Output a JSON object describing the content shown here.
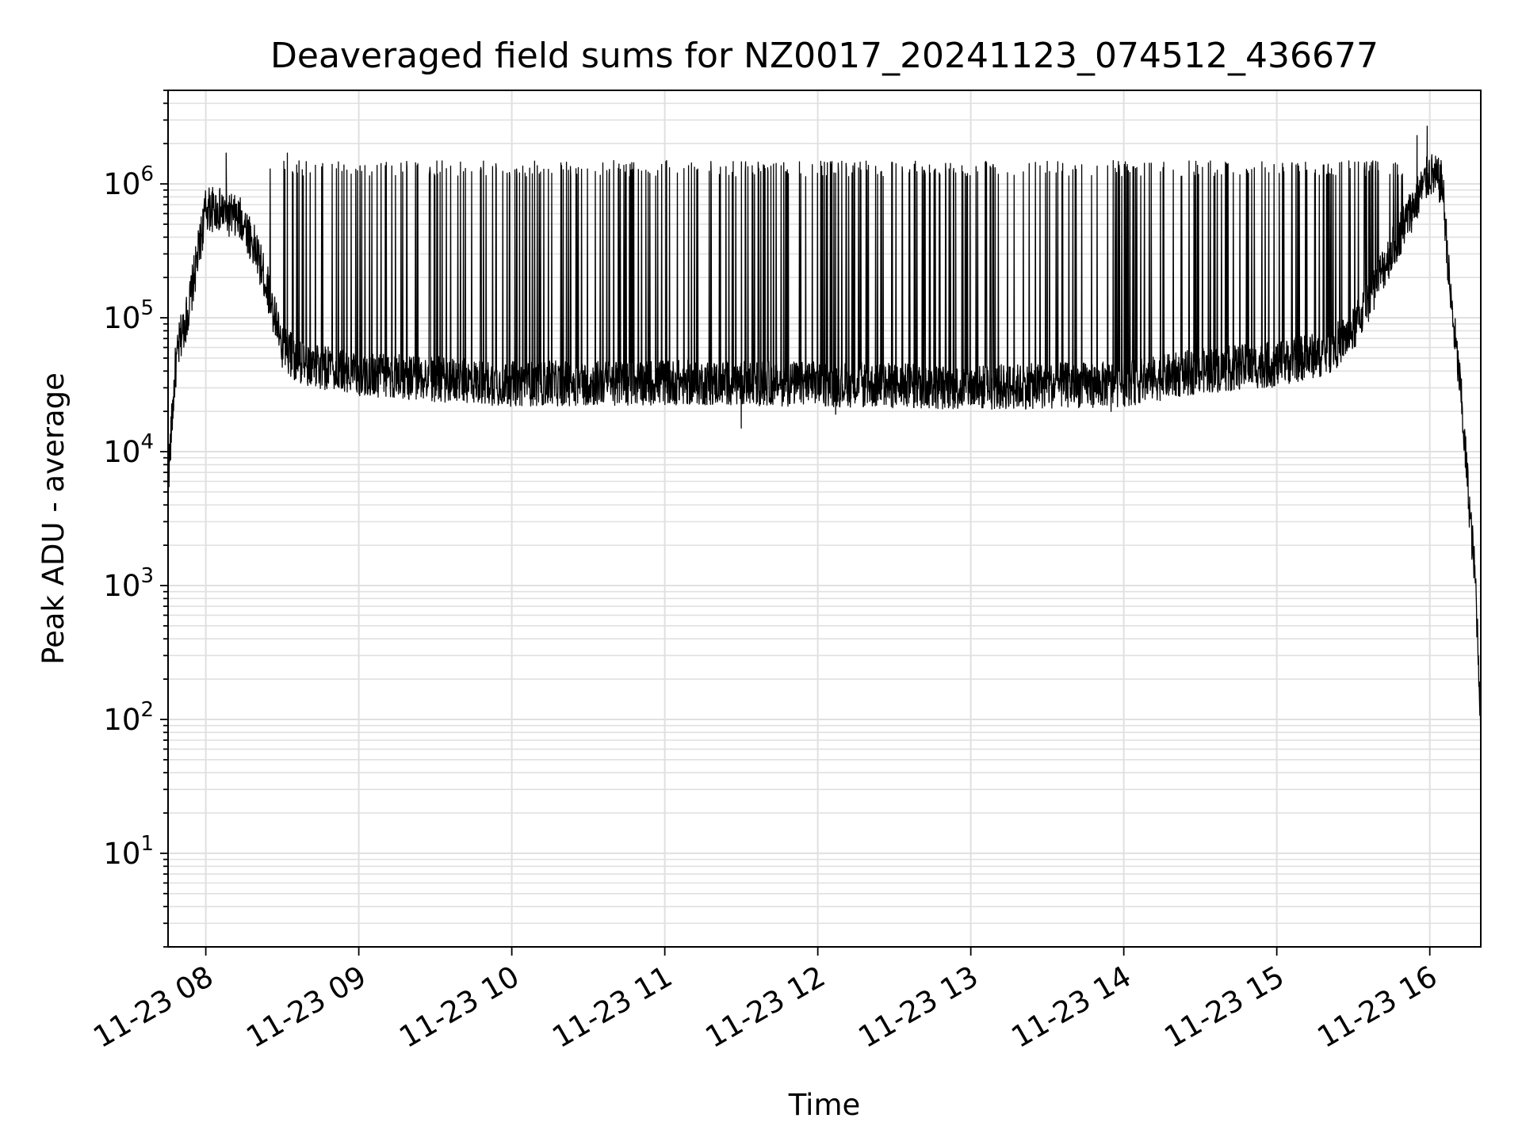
{
  "chart_data": {
    "type": "line",
    "title": "Deaveraged field sums for NZ0017_20241123_074512_436677",
    "xlabel": "Time",
    "ylabel": "Peak ADU - average",
    "y_scale": "log",
    "ylim": [
      2,
      5000000
    ],
    "xlim": [
      "2024-11-23T07:45:12",
      "2024-11-23T16:20:00"
    ],
    "grid": true,
    "line_color": "#000000",
    "grid_color": "#e0e0e0",
    "x_ticks": [
      {
        "value": "2024-11-23T08:00:00",
        "label": "11-23 08"
      },
      {
        "value": "2024-11-23T09:00:00",
        "label": "11-23 09"
      },
      {
        "value": "2024-11-23T10:00:00",
        "label": "11-23 10"
      },
      {
        "value": "2024-11-23T11:00:00",
        "label": "11-23 11"
      },
      {
        "value": "2024-11-23T12:00:00",
        "label": "11-23 12"
      },
      {
        "value": "2024-11-23T13:00:00",
        "label": "11-23 13"
      },
      {
        "value": "2024-11-23T14:00:00",
        "label": "11-23 14"
      },
      {
        "value": "2024-11-23T15:00:00",
        "label": "11-23 15"
      },
      {
        "value": "2024-11-23T16:00:00",
        "label": "11-23 16"
      }
    ],
    "y_ticks": [
      {
        "value": 10,
        "base": "10",
        "exp": "1"
      },
      {
        "value": 100,
        "base": "10",
        "exp": "2"
      },
      {
        "value": 1000,
        "base": "10",
        "exp": "3"
      },
      {
        "value": 10000,
        "base": "10",
        "exp": "4"
      },
      {
        "value": 100000,
        "base": "10",
        "exp": "5"
      },
      {
        "value": 1000000,
        "base": "10",
        "exp": "6"
      }
    ],
    "series": [
      {
        "baseline": {
          "x": [
            "2024-11-23T07:45:12",
            "2024-11-23T07:48:00",
            "2024-11-23T07:50:00",
            "2024-11-23T07:53:00",
            "2024-11-23T07:57:00",
            "2024-11-23T08:00:00",
            "2024-11-23T08:05:00",
            "2024-11-23T08:15:00",
            "2024-11-23T08:20:00",
            "2024-11-23T08:25:00",
            "2024-11-23T08:30:00",
            "2024-11-23T08:35:00",
            "2024-11-23T08:40:00",
            "2024-11-23T09:00:00",
            "2024-11-23T10:00:00",
            "2024-11-23T11:00:00",
            "2024-11-23T12:00:00",
            "2024-11-23T13:00:00",
            "2024-11-23T14:00:00",
            "2024-11-23T14:30:00",
            "2024-11-23T15:00:00",
            "2024-11-23T15:20:00",
            "2024-11-23T15:30:00",
            "2024-11-23T15:40:00",
            "2024-11-23T15:50:00",
            "2024-11-23T16:00:00",
            "2024-11-23T16:05:00",
            "2024-11-23T16:08:00",
            "2024-11-23T16:12:00",
            "2024-11-23T16:16:00",
            "2024-11-23T16:18:00",
            "2024-11-23T16:20:00"
          ],
          "y": [
            6000,
            40000,
            70000,
            110000,
            300000,
            650000,
            640000,
            520000,
            300000,
            150000,
            60000,
            50000,
            45000,
            38000,
            32000,
            33000,
            32000,
            30000,
            32000,
            40000,
            45000,
            55000,
            80000,
            200000,
            500000,
            1200000,
            1000000,
            150000,
            30000,
            3000,
            1000,
            100
          ]
        },
        "spike_peak": 1300000,
        "spike_count": 420,
        "spike_window": [
          "2024-11-23T08:25:00",
          "2024-11-23T15:50:00"
        ],
        "notable_peaks": [
          {
            "x": "2024-11-23T08:08:00",
            "y": 1700000
          },
          {
            "x": "2024-11-23T08:32:00",
            "y": 1700000
          },
          {
            "x": "2024-11-23T15:55:00",
            "y": 2300000
          },
          {
            "x": "2024-11-23T15:59:00",
            "y": 2700000
          }
        ],
        "notable_dips": [
          {
            "x": "2024-11-23T11:30:00",
            "y": 15000
          },
          {
            "x": "2024-11-23T12:07:00",
            "y": 19000
          },
          {
            "x": "2024-11-23T13:55:00",
            "y": 20000
          }
        ]
      }
    ]
  }
}
